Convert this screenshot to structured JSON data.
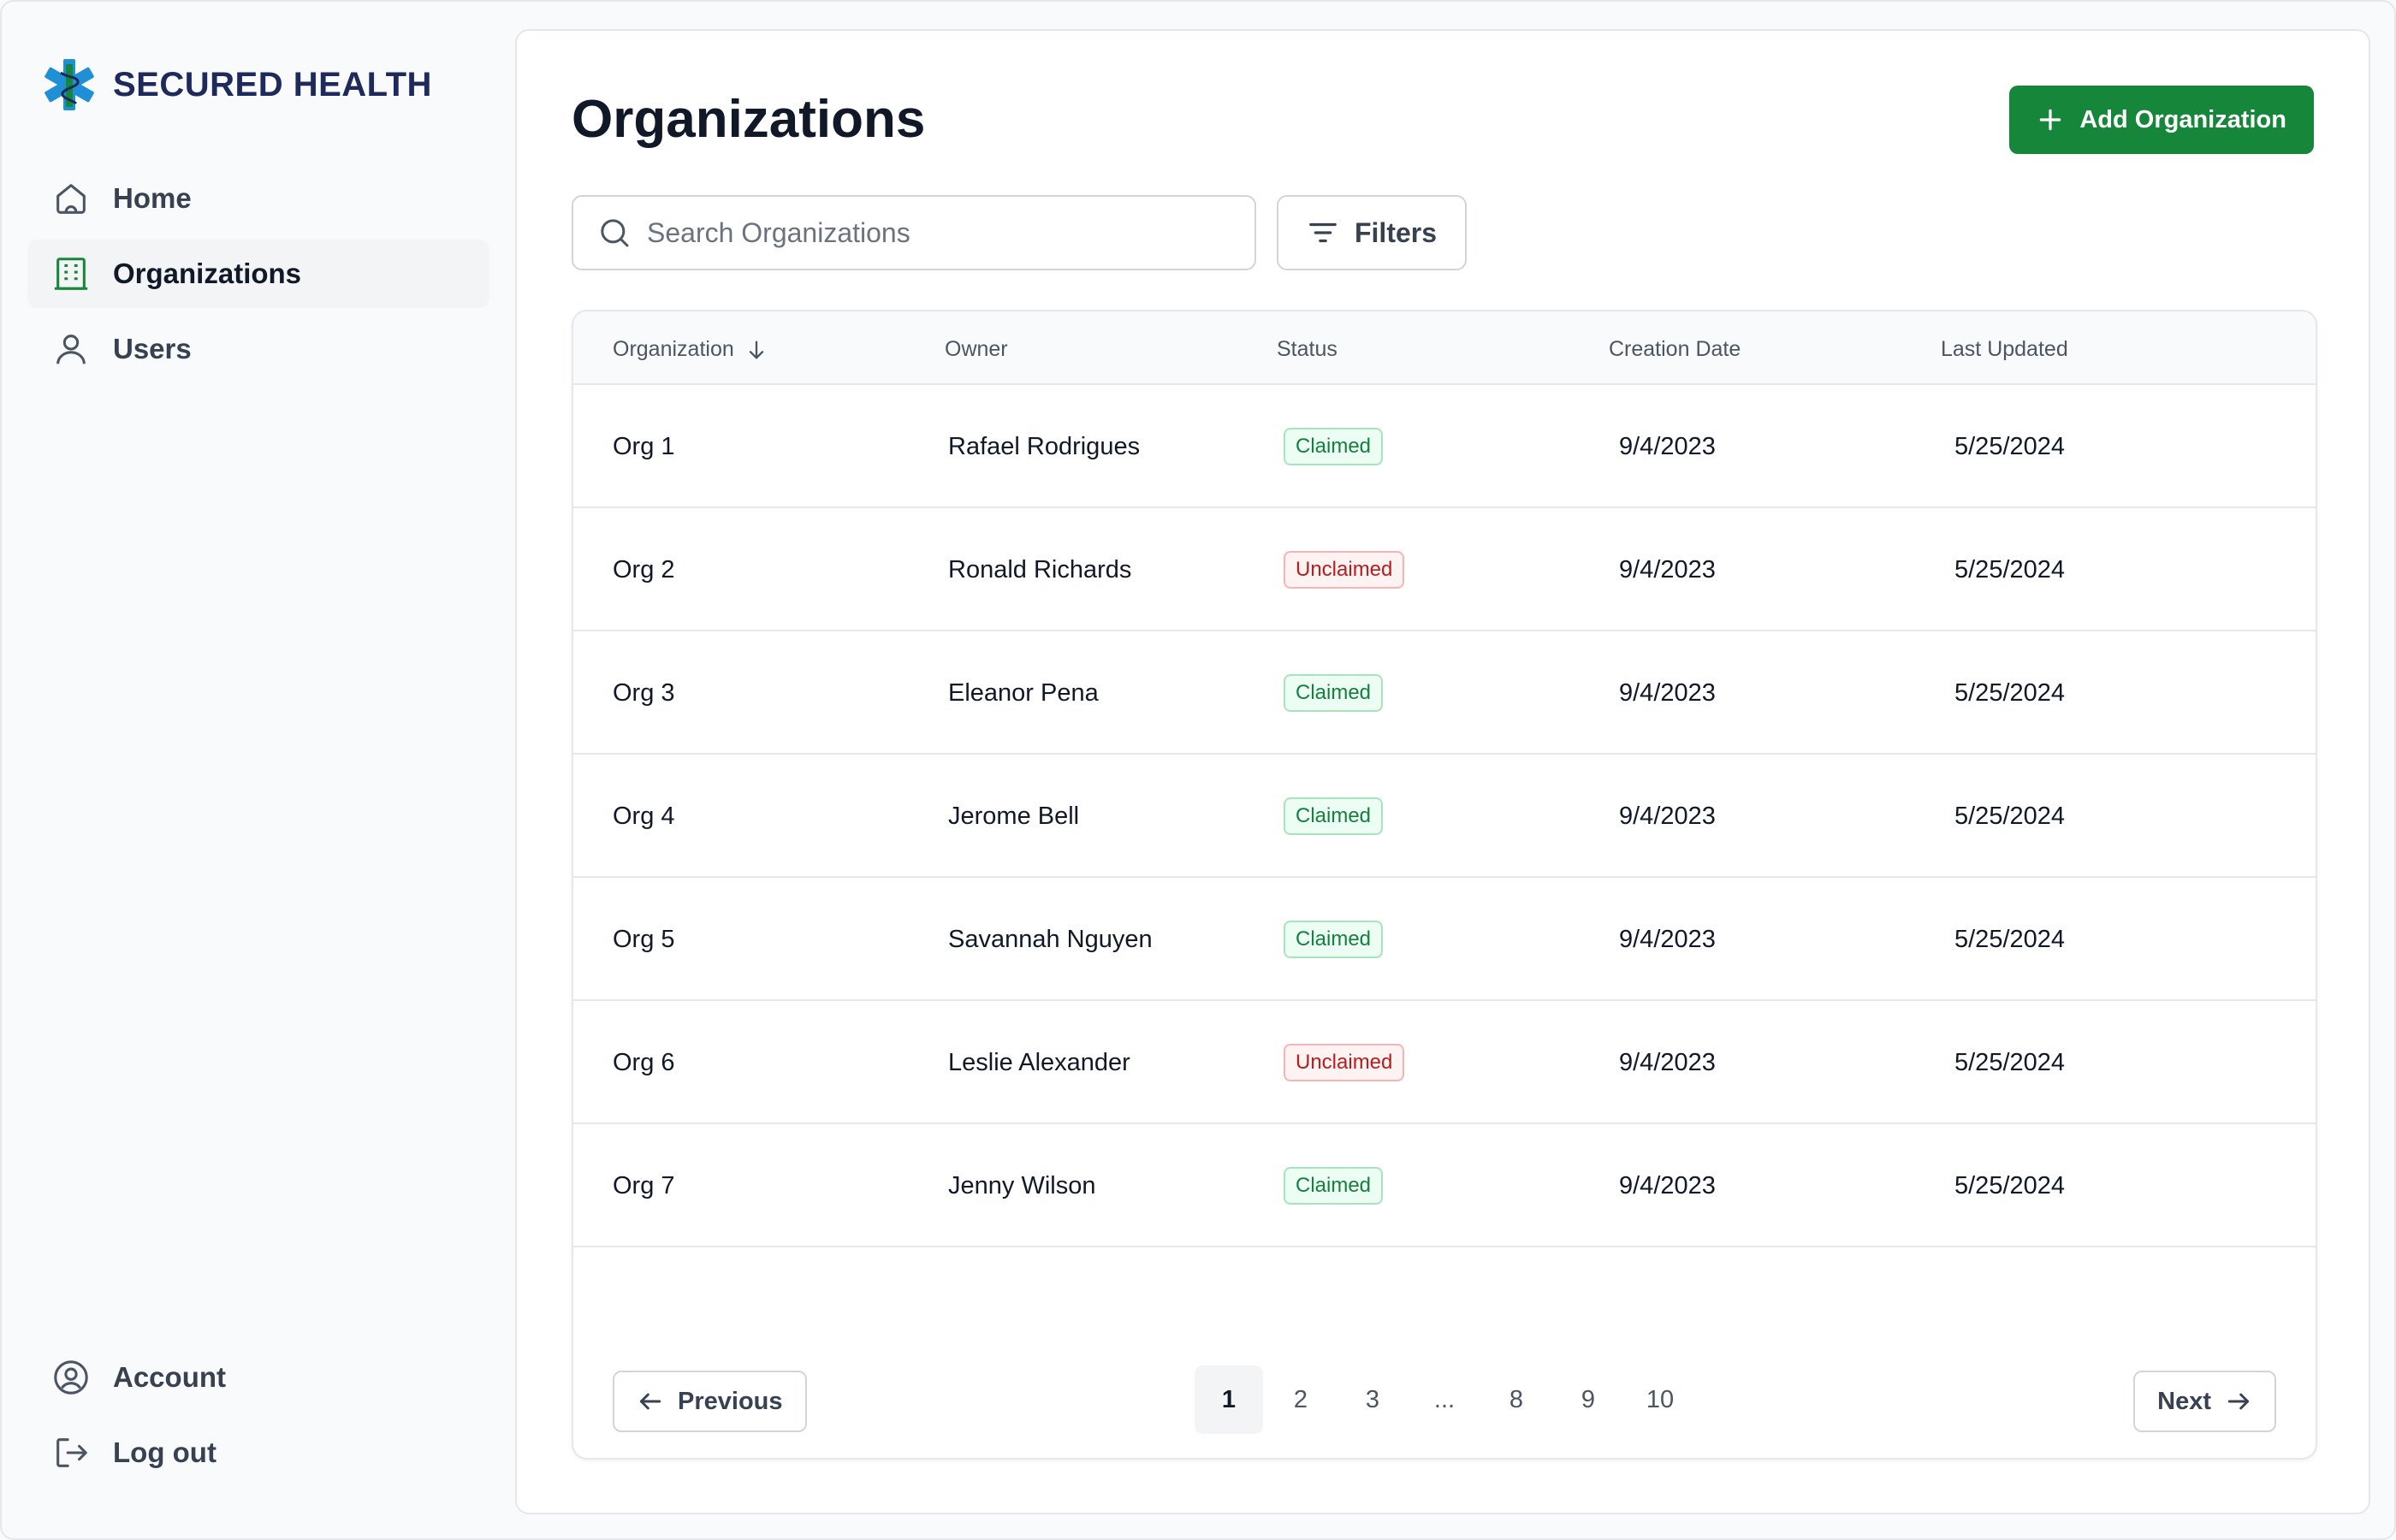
{
  "brand": {
    "name": "SECURED HEALTH"
  },
  "sidebar": {
    "items": [
      {
        "label": "Home",
        "icon": "home-icon"
      },
      {
        "label": "Organizations",
        "icon": "building-icon",
        "active": true
      },
      {
        "label": "Users",
        "icon": "user-icon"
      }
    ],
    "bottom": [
      {
        "label": "Account",
        "icon": "account-icon"
      },
      {
        "label": "Log out",
        "icon": "logout-icon"
      }
    ]
  },
  "header": {
    "title": "Organizations",
    "add_label": "Add Organization"
  },
  "search": {
    "placeholder": "Search Organizations",
    "value": ""
  },
  "filters": {
    "label": "Filters"
  },
  "table": {
    "columns": [
      "Organization",
      "Owner",
      "Status",
      "Creation Date",
      "Last Updated"
    ],
    "sorted_column": "Organization",
    "rows": [
      {
        "org": "Org 1",
        "owner": "Rafael Rodrigues",
        "status": "Claimed",
        "created": "9/4/2023",
        "updated": "5/25/2024"
      },
      {
        "org": "Org 2",
        "owner": "Ronald Richards",
        "status": "Unclaimed",
        "created": "9/4/2023",
        "updated": "5/25/2024"
      },
      {
        "org": "Org 3",
        "owner": "Eleanor Pena",
        "status": "Claimed",
        "created": "9/4/2023",
        "updated": "5/25/2024"
      },
      {
        "org": "Org 4",
        "owner": "Jerome Bell",
        "status": "Claimed",
        "created": "9/4/2023",
        "updated": "5/25/2024"
      },
      {
        "org": "Org 5",
        "owner": "Savannah Nguyen",
        "status": "Claimed",
        "created": "9/4/2023",
        "updated": "5/25/2024"
      },
      {
        "org": "Org 6",
        "owner": "Leslie Alexander",
        "status": "Unclaimed",
        "created": "9/4/2023",
        "updated": "5/25/2024"
      },
      {
        "org": "Org 7",
        "owner": "Jenny Wilson",
        "status": "Claimed",
        "created": "9/4/2023",
        "updated": "5/25/2024"
      }
    ]
  },
  "pagination": {
    "previous_label": "Previous",
    "next_label": "Next",
    "pages": [
      "1",
      "2",
      "3",
      "...",
      "8",
      "9",
      "10"
    ],
    "current": "1"
  },
  "colors": {
    "accent": "#16873a",
    "brand_text": "#1f2a5c",
    "claimed": "#15803d",
    "unclaimed": "#b91c1c"
  }
}
